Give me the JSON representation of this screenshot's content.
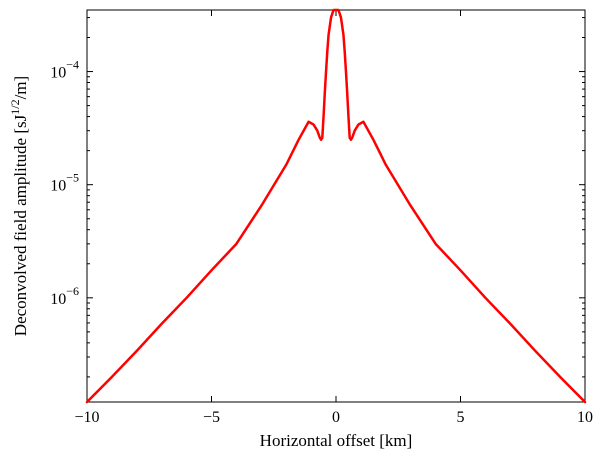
{
  "chart_data": {
    "type": "line",
    "title": "",
    "xlabel": "Horizontal offset [km]",
    "ylabel": {
      "prefix": "Deconvolved field amplitude [sJ",
      "superscript": "1/2",
      "suffix": "/m]"
    },
    "xlim": [
      -10,
      10
    ],
    "ylim": [
      1.2e-07,
      0.00035
    ],
    "yscale": "log",
    "grid": false,
    "legend": "none",
    "x_ticks": [
      {
        "value": -10,
        "label": "−10"
      },
      {
        "value": -5,
        "label": "−5"
      },
      {
        "value": 0,
        "label": "0"
      },
      {
        "value": 5,
        "label": "5"
      },
      {
        "value": 10,
        "label": "10"
      }
    ],
    "y_ticks": [
      {
        "value": 1e-06,
        "base": "10",
        "exp": "−6"
      },
      {
        "value": 1e-05,
        "base": "10",
        "exp": "−5"
      },
      {
        "value": 0.0001,
        "base": "10",
        "exp": "−4"
      }
    ],
    "series": [
      {
        "color": "#ff0000",
        "x": [
          -10,
          -9,
          -8,
          -7,
          -6,
          -5,
          -4,
          -3,
          -2,
          -1.5,
          -1.1,
          -0.9,
          -0.75,
          -0.65,
          -0.6,
          -0.55,
          -0.5,
          -0.45,
          -0.4,
          -0.35,
          -0.3,
          -0.2,
          -0.1,
          0,
          0.1,
          0.2,
          0.3,
          0.35,
          0.4,
          0.45,
          0.5,
          0.55,
          0.6,
          0.65,
          0.75,
          0.9,
          1.1,
          1.5,
          2,
          3,
          4,
          5,
          6,
          7,
          8,
          9,
          10
        ],
        "y": [
          1.2e-07,
          2e-07,
          3.4e-07,
          5.9e-07,
          1e-06,
          1.75e-06,
          3e-06,
          6.5e-06,
          1.5e-05,
          2.5e-05,
          3.6e-05,
          3.4e-05,
          3e-05,
          2.6e-05,
          2.5e-05,
          2.6e-05,
          4e-05,
          6.5e-05,
          0.0001,
          0.00015,
          0.00021,
          0.0003,
          0.00035,
          0.00035,
          0.00035,
          0.0003,
          0.00021,
          0.00015,
          0.0001,
          6.5e-05,
          4e-05,
          2.6e-05,
          2.5e-05,
          2.6e-05,
          3e-05,
          3.4e-05,
          3.6e-05,
          2.5e-05,
          1.5e-05,
          6.5e-06,
          3e-06,
          1.75e-06,
          1e-06,
          5.9e-07,
          3.4e-07,
          2e-07,
          1.2e-07
        ]
      }
    ]
  }
}
